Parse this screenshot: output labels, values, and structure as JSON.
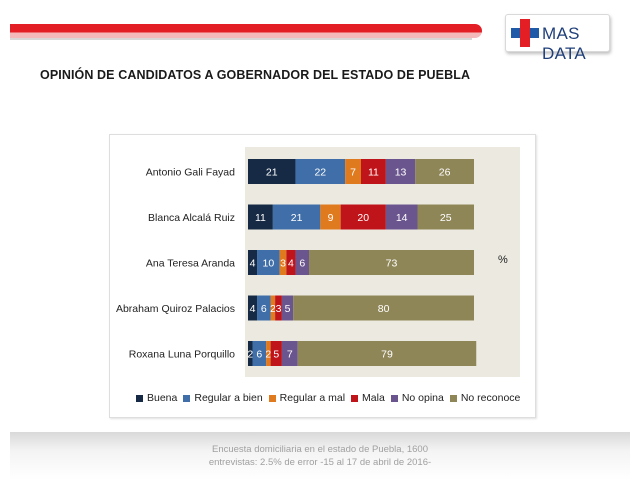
{
  "brand": {
    "name": "MAS DATA"
  },
  "page": {
    "title": "OPINIÓN DE CANDIDATOS A GOBERNADOR DEL ESTADO DE PUEBLA"
  },
  "chart_data": {
    "type": "bar",
    "orientation": "horizontal",
    "stacked": true,
    "unit_label": "%",
    "categories": [
      "Antonio Gali Fayad",
      "Blanca Alcalá Ruiz",
      "Ana Teresa Aranda",
      "Abraham Quiroz Palacios",
      "Roxana Luna Porquillo"
    ],
    "series": [
      {
        "name": "Buena",
        "color": "#172a45",
        "values": [
          21,
          11,
          4,
          4,
          2
        ]
      },
      {
        "name": "Regular a bien",
        "color": "#3f6ea8",
        "values": [
          22,
          21,
          10,
          6,
          6
        ]
      },
      {
        "name": "Regular a mal",
        "color": "#e07a1f",
        "values": [
          7,
          9,
          3,
          2,
          2
        ]
      },
      {
        "name": "Mala",
        "color": "#c0141b",
        "values": [
          11,
          20,
          4,
          3,
          5
        ]
      },
      {
        "name": "No opina",
        "color": "#6b558f",
        "values": [
          13,
          14,
          6,
          5,
          7
        ]
      },
      {
        "name": "No reconoce",
        "color": "#8f8658",
        "values": [
          26,
          25,
          73,
          80,
          79
        ]
      }
    ],
    "data_labels": [
      [
        "21",
        "11",
        "4",
        "4",
        "2"
      ],
      [
        "22",
        "21",
        "10",
        "6",
        "6"
      ],
      [
        "7",
        "9",
        "3",
        "2",
        "2"
      ],
      [
        "11",
        "20",
        "4",
        "3",
        "5"
      ],
      [
        "13",
        "14",
        "6",
        "5",
        "7"
      ],
      [
        "26",
        "25",
        "73",
        "80",
        "79"
      ]
    ],
    "xlim": [
      0,
      100
    ],
    "legend_position": "bottom"
  },
  "footer": {
    "line1": "Encuesta domiciliaria en el estado de Puebla, 1600",
    "line2": "entrevistas: 2.5% de error  -15 al 17 de abril de 2016-"
  }
}
